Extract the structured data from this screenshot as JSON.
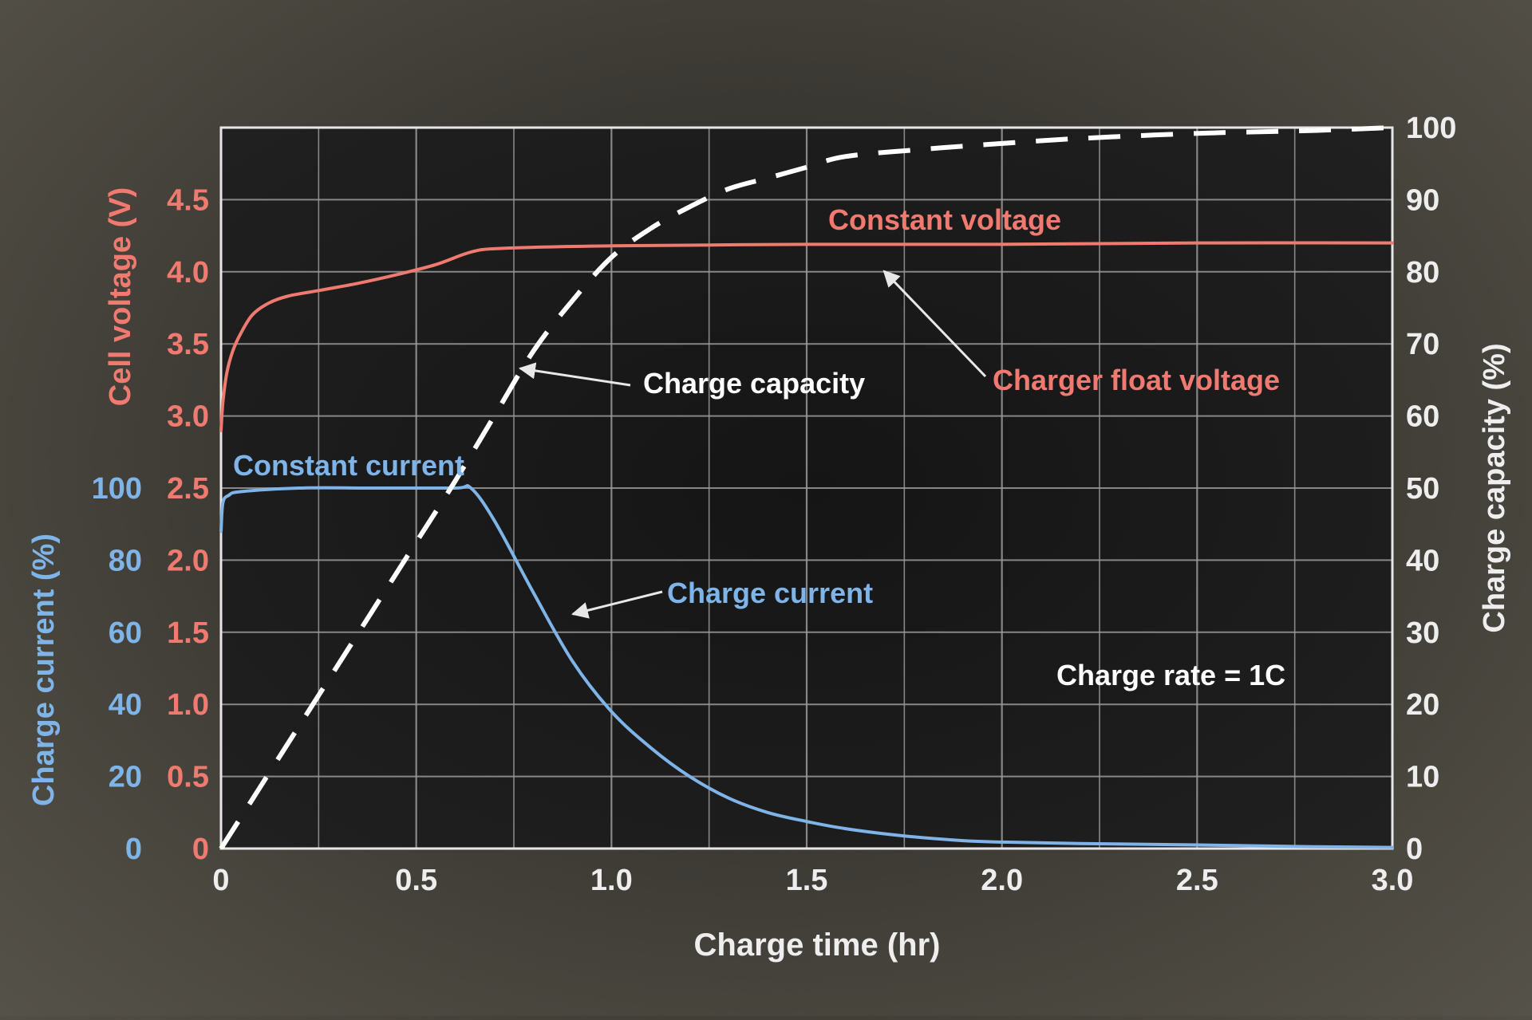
{
  "chart_data": {
    "type": "line",
    "x_axis": {
      "label": "Charge time (hr)",
      "range": [
        0,
        3.0
      ],
      "ticks": [
        0,
        0.5,
        1.0,
        1.5,
        2.0,
        2.5,
        3.0
      ],
      "tick_labels": [
        "0",
        "0.5",
        "1.0",
        "1.5",
        "2.0",
        "2.5",
        "3.0"
      ]
    },
    "y_axes": {
      "voltage": {
        "label": "Cell voltage (V)",
        "range": [
          0,
          5.0
        ],
        "tick_labels": [
          "0",
          "0.5",
          "1.0",
          "1.5",
          "2.0",
          "2.5",
          "3.0",
          "3.5",
          "4.0",
          "4.5"
        ],
        "color": "#f07a70"
      },
      "current": {
        "label": "Charge current (%)",
        "range": [
          0,
          200
        ],
        "tick_labels": [
          "0",
          "20",
          "40",
          "60",
          "80",
          "100"
        ],
        "color": "#7fb4e8"
      },
      "capacity": {
        "label": "Charge capacity (%)",
        "range": [
          0,
          100
        ],
        "tick_labels": [
          "0",
          "10",
          "20",
          "30",
          "40",
          "50",
          "60",
          "70",
          "80",
          "90",
          "100"
        ],
        "color": "#ffffff"
      }
    },
    "grid": true,
    "series": [
      {
        "key": "voltage",
        "axis": "voltage",
        "style": "solid",
        "color": "#f07a70",
        "x": [
          0,
          0.005,
          0.015,
          0.03,
          0.05,
          0.08,
          0.12,
          0.17,
          0.25,
          0.35,
          0.45,
          0.55,
          0.62,
          0.66,
          0.7,
          0.8,
          1.0,
          1.5,
          2.0,
          2.5,
          3.0
        ],
        "y": [
          2.9,
          3.1,
          3.3,
          3.45,
          3.57,
          3.7,
          3.78,
          3.83,
          3.87,
          3.92,
          3.98,
          4.05,
          4.12,
          4.15,
          4.16,
          4.17,
          4.18,
          4.19,
          4.19,
          4.2,
          4.2
        ]
      },
      {
        "key": "current",
        "axis": "current",
        "style": "solid",
        "color": "#7fb4e8",
        "x": [
          0,
          0.005,
          0.02,
          0.05,
          0.2,
          0.4,
          0.6,
          0.64,
          0.7,
          0.8,
          0.9,
          1.0,
          1.1,
          1.2,
          1.3,
          1.4,
          1.5,
          1.6,
          1.75,
          1.9,
          2.0,
          2.2,
          2.5,
          2.8,
          3.0
        ],
        "y": [
          88,
          96,
          98,
          99,
          100,
          100,
          100,
          100,
          91,
          71,
          52,
          38,
          28,
          20,
          14,
          10,
          7.5,
          5.5,
          3.5,
          2.2,
          1.8,
          1.4,
          1.0,
          0.5,
          0.3
        ]
      },
      {
        "key": "capacity",
        "axis": "capacity",
        "style": "dashed",
        "color": "#ffffff",
        "x": [
          0,
          0.1,
          0.2,
          0.3,
          0.4,
          0.5,
          0.6,
          0.7,
          0.8,
          0.9,
          1.0,
          1.1,
          1.2,
          1.3,
          1.4,
          1.5,
          1.6,
          1.8,
          2.0,
          2.2,
          2.5,
          2.8,
          3.0
        ],
        "y": [
          0,
          8.5,
          17,
          25.5,
          34,
          42.5,
          51,
          60,
          69,
          76,
          82,
          86,
          89,
          91.5,
          93,
          94.5,
          96,
          97,
          97.8,
          98.5,
          99.2,
          99.6,
          100
        ]
      }
    ],
    "annotations": {
      "constant_voltage": "Constant voltage",
      "constant_current": "Constant current",
      "charge_capacity": "Charge capacity",
      "charger_float_voltage": "Charger float voltage",
      "charge_current": "Charge current",
      "charge_rate": "Charge rate = 1C"
    }
  }
}
